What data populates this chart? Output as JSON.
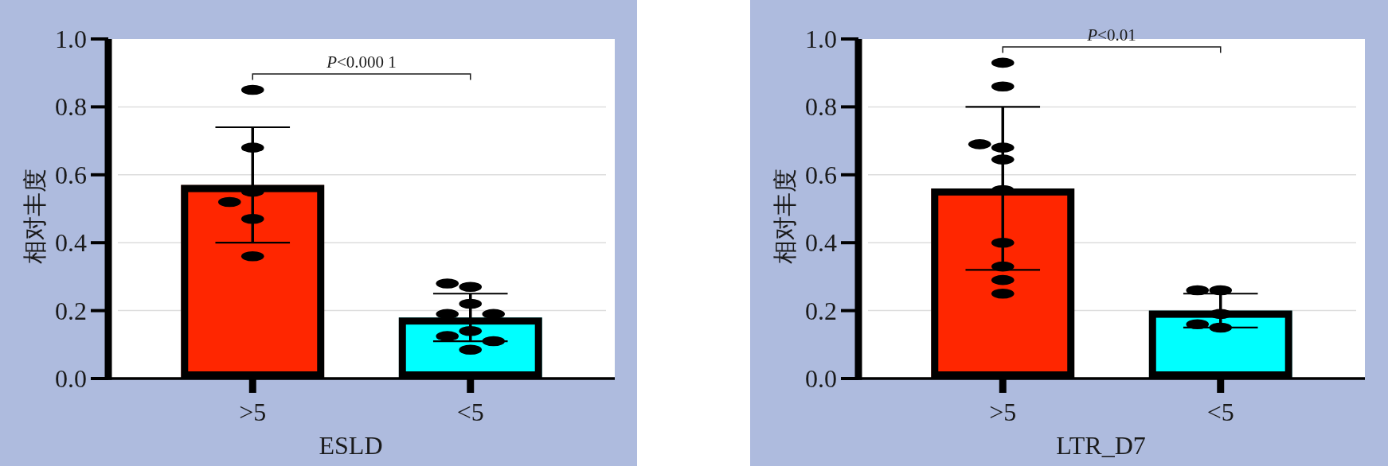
{
  "chart_data": [
    {
      "type": "bar",
      "categories": [
        ">5",
        "<5"
      ],
      "xlabel": "ESLD",
      "ylabel": "相对丰度",
      "ylim": [
        0,
        1.0
      ],
      "yticks": [
        {
          "value": 0,
          "label": "0.0"
        },
        {
          "value": 0.2,
          "label": "0.2"
        },
        {
          "value": 0.4,
          "label": "0.4"
        },
        {
          "value": 0.6,
          "label": "0.6"
        },
        {
          "value": 0.8,
          "label": "0.8"
        },
        {
          "value": 1.0,
          "label": "1.0"
        }
      ],
      "grid": "y",
      "annotations": [
        "P<0.000 1"
      ],
      "series": [
        {
          "colors": [
            "#ff2600",
            "#00ffff"
          ],
          "values": [
            0.57,
            0.18
          ],
          "errors": [
            0.17,
            0.07
          ]
        },
        {
          "type": "scatter",
          "color": "#000000",
          "marker": "circle",
          "x": [
            ">5",
            ">5",
            ">5",
            ">5",
            ">5",
            ">5",
            "<5",
            "<5",
            "<5",
            "<5",
            "<5",
            "<5",
            "<5",
            "<5",
            "<5"
          ],
          "values": [
            0.85,
            0.68,
            0.55,
            0.52,
            0.47,
            0.36,
            0.27,
            0.28,
            0.22,
            0.19,
            0.19,
            0.14,
            0.125,
            0.11,
            0.085
          ]
        }
      ]
    },
    {
      "type": "bar",
      "categories": [
        ">5",
        "<5"
      ],
      "xlabel": "LTR_D7",
      "ylabel": "相对丰度",
      "ylim": [
        0,
        1.0
      ],
      "yticks": [
        {
          "value": 0,
          "label": "0.0"
        },
        {
          "value": 0.2,
          "label": "0.2"
        },
        {
          "value": 0.4,
          "label": "0.4"
        },
        {
          "value": 0.6,
          "label": "0.6"
        },
        {
          "value": 0.8,
          "label": "0.8"
        },
        {
          "value": 1.0,
          "label": "1.0"
        }
      ],
      "grid": "y",
      "annotations": [
        "P<0.01"
      ],
      "series": [
        {
          "colors": [
            "#ff2600",
            "#00ffff"
          ],
          "values": [
            0.56,
            0.2
          ],
          "errors": [
            0.24,
            0.05
          ]
        },
        {
          "type": "scatter",
          "color": "#000000",
          "marker": "circle",
          "x": [
            ">5",
            ">5",
            ">5",
            ">5",
            ">5",
            ">5",
            ">5",
            ">5",
            ">5",
            ">5",
            "<5",
            "<5",
            "<5",
            "<5",
            "<5"
          ],
          "values": [
            0.93,
            0.86,
            0.68,
            0.69,
            0.645,
            0.555,
            0.4,
            0.33,
            0.29,
            0.25,
            0.26,
            0.26,
            0.19,
            0.15,
            0.16
          ]
        }
      ]
    }
  ]
}
